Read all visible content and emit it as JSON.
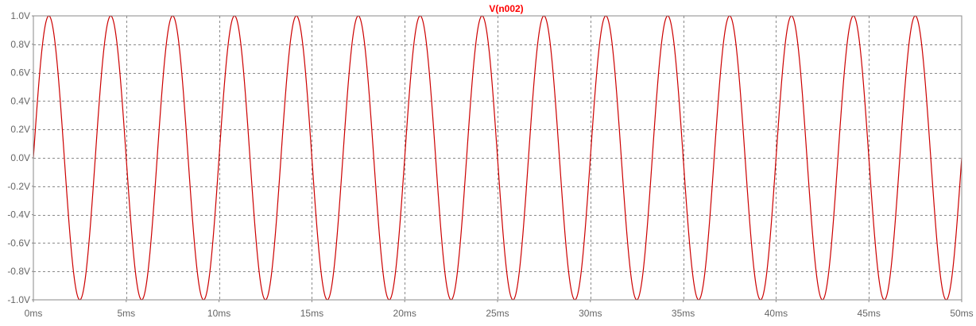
{
  "chart_data": {
    "type": "line",
    "title": "V(n002)",
    "xlabel": "",
    "ylabel": "",
    "xlim": [
      0,
      50
    ],
    "ylim": [
      -1.0,
      1.0
    ],
    "x_ticks": [
      0,
      5,
      10,
      15,
      20,
      25,
      30,
      35,
      40,
      45,
      50
    ],
    "x_tick_labels": [
      "0ms",
      "5ms",
      "10ms",
      "15ms",
      "20ms",
      "25ms",
      "30ms",
      "35ms",
      "40ms",
      "45ms",
      "50ms"
    ],
    "y_ticks": [
      1.0,
      0.8,
      0.6,
      0.4,
      0.2,
      0.0,
      -0.2,
      -0.4,
      -0.6,
      -0.8,
      -1.0
    ],
    "y_tick_labels": [
      "1.0V",
      "0.8V",
      "0.6V",
      "0.4V",
      "0.2V",
      "0.0V",
      "-0.2V",
      "-0.4V",
      "-0.6V",
      "-0.8V",
      "-1.0V"
    ],
    "grid": true,
    "colors": {
      "trace": "#cc0000",
      "title": "#ff0000",
      "grid": "#8a8a8a",
      "axis_text": "#666666",
      "frame": "#888888"
    },
    "series": [
      {
        "name": "V(n002)",
        "function": "sine",
        "amplitude": 1.0,
        "offset": 0.0,
        "frequency_hz": 300,
        "phase_deg": 0,
        "x_unit": "ms",
        "y_unit": "V"
      }
    ]
  }
}
